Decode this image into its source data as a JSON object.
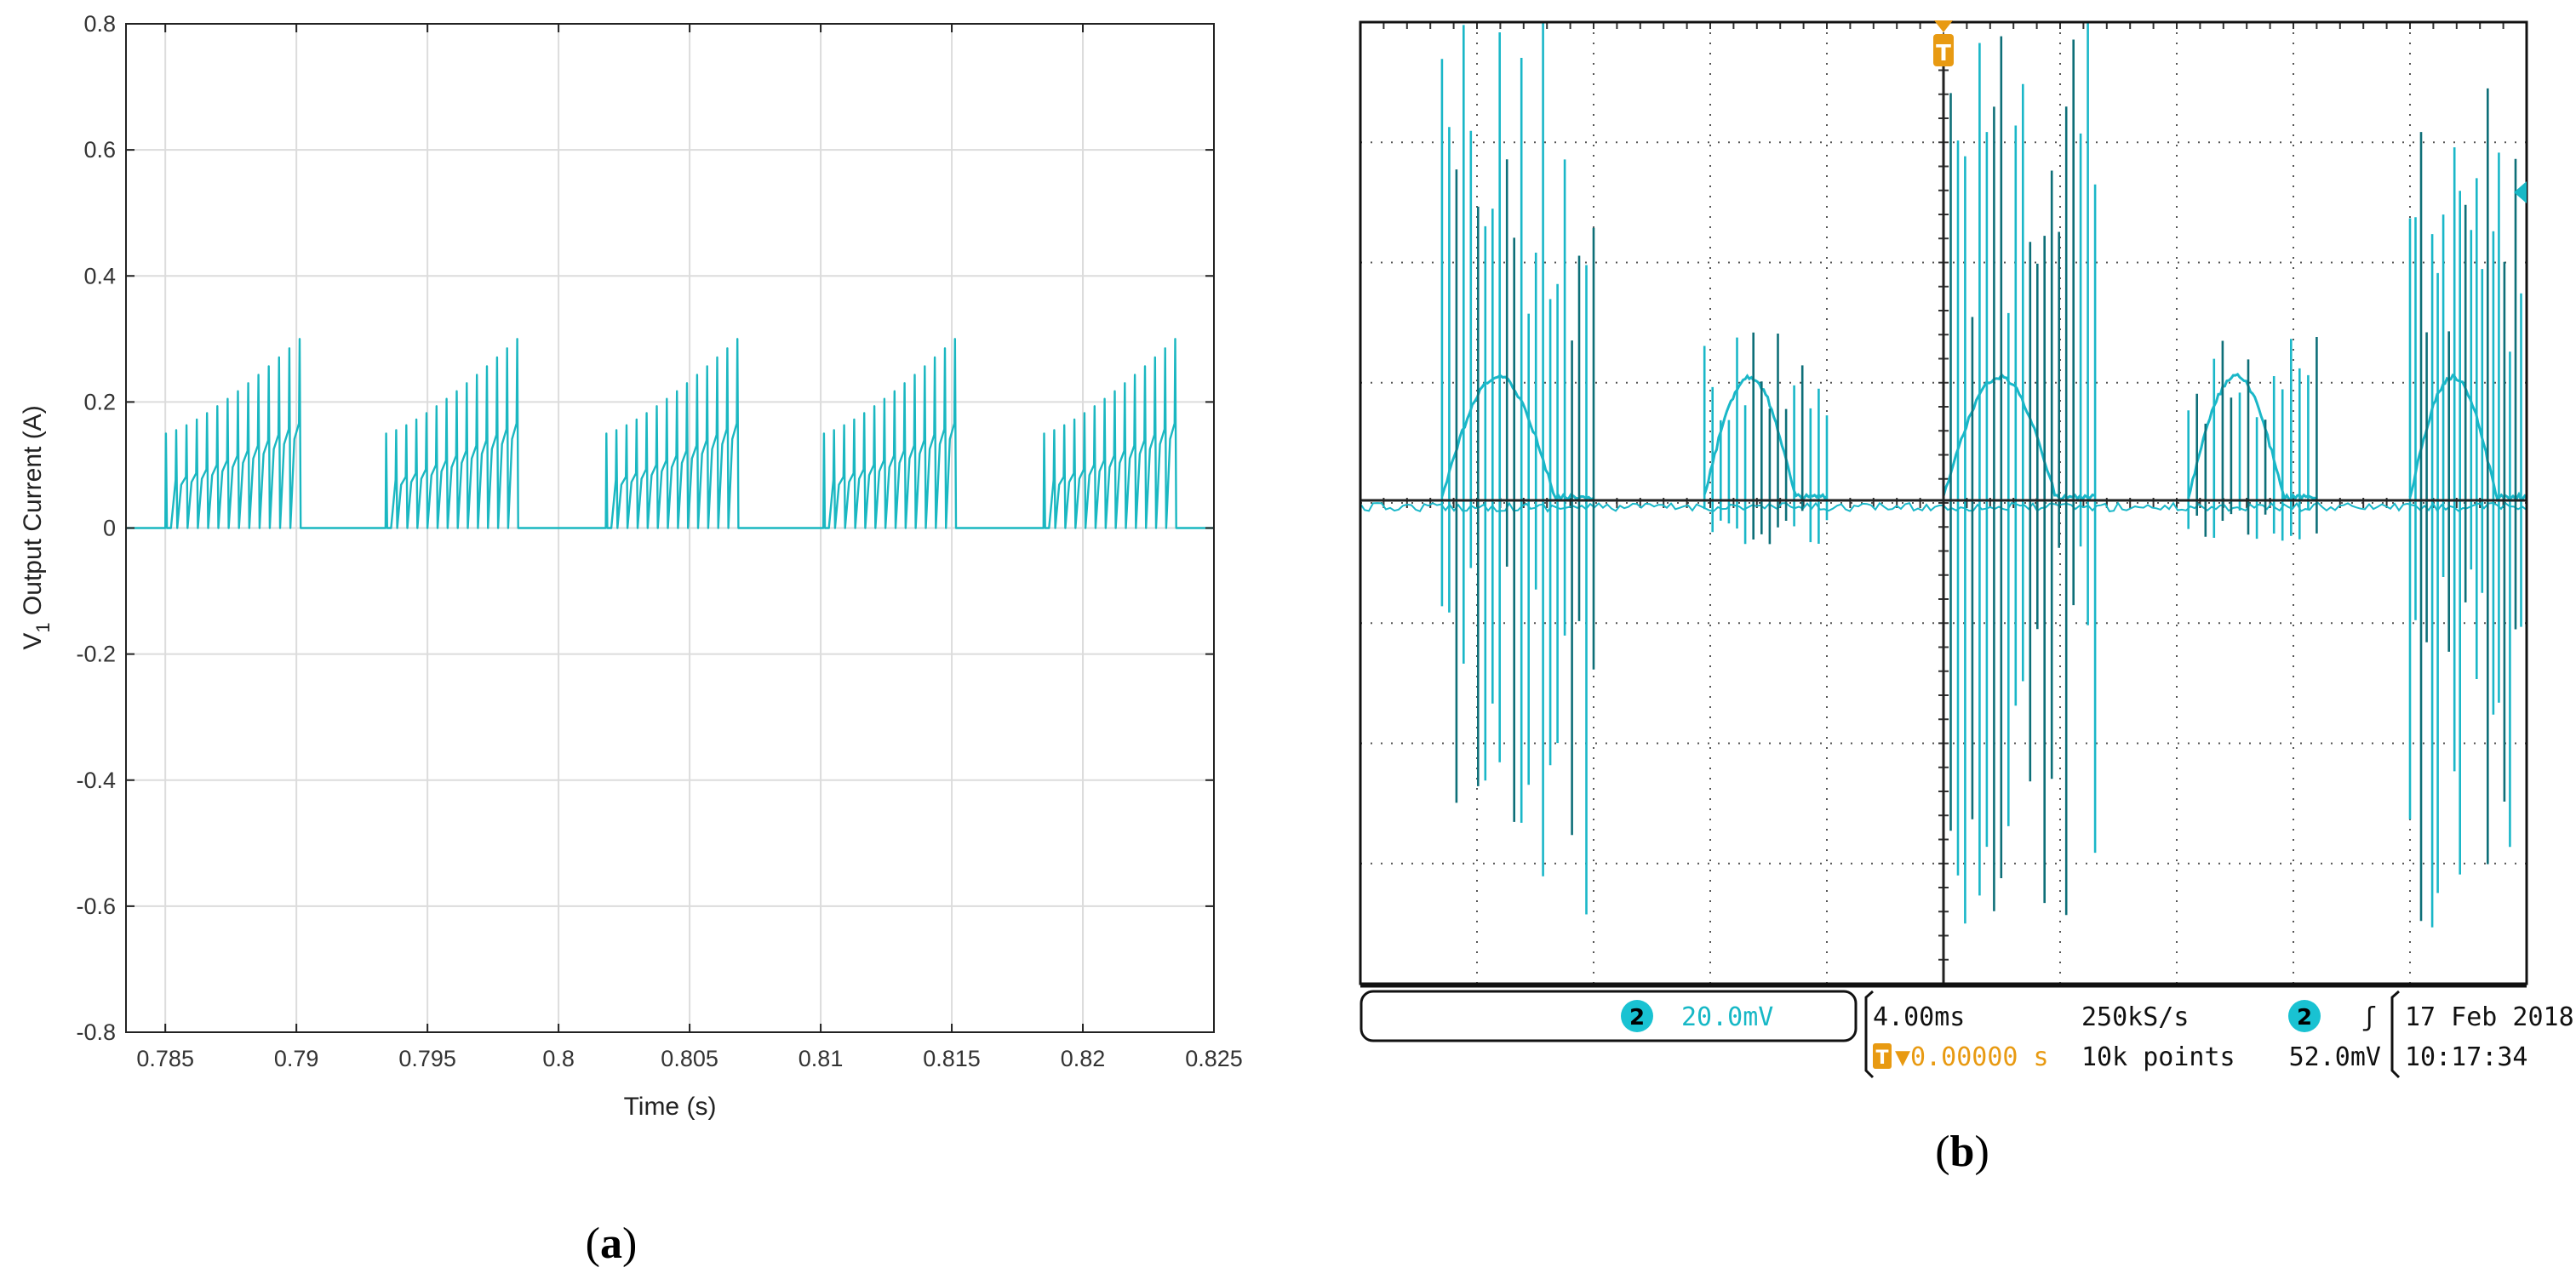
{
  "chart_data": [
    {
      "type": "line",
      "panel": "(a)",
      "xlabel": "Time (s)",
      "ylabel_main": "V",
      "ylabel_sub": "1",
      "ylabel_rest": " Output Current (A)",
      "xlim": [
        0.7835,
        0.825
      ],
      "ylim": [
        -0.8,
        0.8
      ],
      "xticks": [
        0.785,
        0.79,
        0.795,
        0.8,
        0.805,
        0.81,
        0.815,
        0.82,
        0.825
      ],
      "xtick_labels": [
        "0.785",
        "0.79",
        "0.795",
        "0.8",
        "0.805",
        "0.81",
        "0.815",
        "0.82",
        "0.825"
      ],
      "yticks": [
        -0.8,
        -0.6,
        -0.4,
        -0.2,
        0,
        0.2,
        0.4,
        0.6,
        0.8
      ],
      "ytick_labels": [
        "-0.8",
        "-0.6",
        "-0.4",
        "-0.2",
        "0",
        "0.2",
        "0.4",
        "0.6",
        "0.8"
      ],
      "grid": true,
      "color": "#1ab7c1",
      "bursts": [
        {
          "start": 0.785,
          "end": 0.7901
        },
        {
          "start": 0.7934,
          "end": 0.7984
        },
        {
          "start": 0.8018,
          "end": 0.8068
        },
        {
          "start": 0.8101,
          "end": 0.8151
        },
        {
          "start": 0.8185,
          "end": 0.8235
        }
      ],
      "burst_pulses": 14,
      "burst_envelope": [
        0.15,
        0.3
      ],
      "baseline": 0
    },
    {
      "type": "line",
      "panel": "(b)",
      "kind": "oscilloscope capture",
      "channel": "2",
      "vertical_scale": "20.0mV",
      "time_scale": "4.00ms",
      "sample_rate": "250kS/s",
      "trigger_channel": "2",
      "trigger_slope": "ʃ",
      "trigger_level": "52.0mV",
      "trigger_position": "▼0.00000 s",
      "record_length": "10k points",
      "date": "17 Feb  2018",
      "time": "10:17:34",
      "grid_divisions": {
        "x": 10,
        "y": 8
      },
      "bursts_div": [
        {
          "start": 0.7,
          "end": 2.0
        },
        {
          "start": 2.95,
          "end": 4.0
        },
        {
          "start": 5.0,
          "end": 6.3
        },
        {
          "start": 7.1,
          "end": 8.2
        },
        {
          "start": 9.0,
          "end": 10.0
        }
      ],
      "envelope_peak_div": 1.0,
      "trace_color": "#1ab7c8",
      "trace_dark_color": "#0e6f78",
      "trigger_color": "#e89a12"
    }
  ],
  "oscilloscope": {
    "trigger_marker": "T",
    "channel_badge": "2",
    "trigger_badge": "T"
  }
}
